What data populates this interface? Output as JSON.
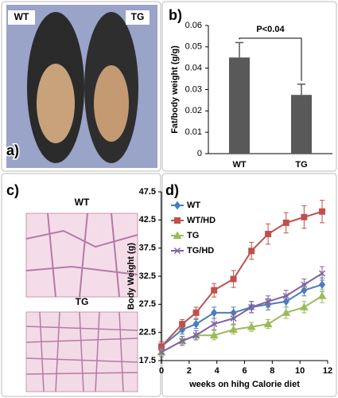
{
  "figure": {
    "panel_labels": [
      "a)",
      "b)",
      "c)",
      "d)"
    ],
    "photo_labels": [
      "WT",
      "TG"
    ],
    "histology_labels": [
      "WT",
      "TG"
    ]
  },
  "chart_data": [
    {
      "type": "bar",
      "ylabel": "Fat/body weight (g/g)",
      "annotation": "P<0.04",
      "categories": [
        "WT",
        "TG"
      ],
      "values": [
        0.045,
        0.0275
      ],
      "errors": [
        0.007,
        0.005
      ],
      "color": "#595959",
      "ylim": [
        0,
        0.06
      ],
      "yticks": [
        0,
        0.01,
        0.02,
        0.03,
        0.04,
        0.05,
        0.06
      ]
    },
    {
      "type": "line",
      "xlabel": "weeks on hihg Calorie diet",
      "ylabel": "Body Weight (g)",
      "x": [
        0,
        1.5,
        2.5,
        3.8,
        5.2,
        6.5,
        7.7,
        9,
        10.3,
        11.6
      ],
      "series": [
        {
          "name": "WT",
          "color": "#4a7ebb",
          "marker": "diamond",
          "values": [
            20,
            23,
            24,
            26,
            26,
            27,
            27.5,
            28,
            30,
            31
          ],
          "errors": [
            0.8,
            0.8,
            0.8,
            1,
            1,
            1,
            1,
            1,
            1,
            1.2
          ]
        },
        {
          "name": "WT/HD",
          "color": "#c0504d",
          "marker": "square",
          "values": [
            20,
            24,
            26,
            30,
            32,
            37,
            40,
            42,
            43,
            44
          ],
          "errors": [
            0.8,
            0.8,
            1,
            1.2,
            1.5,
            1.5,
            1.8,
            1.8,
            2,
            2
          ]
        },
        {
          "name": "TG",
          "color": "#9bbb59",
          "marker": "triangle",
          "values": [
            19,
            21,
            22,
            22,
            23,
            23.5,
            24,
            26,
            27,
            29
          ],
          "errors": [
            0.8,
            0.8,
            0.8,
            0.8,
            0.8,
            0.8,
            0.8,
            1,
            1,
            1.2
          ]
        },
        {
          "name": "TG/HD",
          "color": "#8064a2",
          "marker": "x",
          "values": [
            19,
            21,
            22,
            24,
            25,
            27,
            28,
            29,
            31,
            33
          ],
          "errors": [
            0.8,
            0.8,
            0.8,
            1,
            1,
            1,
            1,
            1,
            1,
            1.2
          ]
        }
      ],
      "xlim": [
        0,
        12
      ],
      "ylim": [
        17.5,
        47.5
      ],
      "xticks": [
        0,
        2,
        4,
        6,
        8,
        10,
        12
      ],
      "yticks": [
        17.5,
        22.5,
        27.5,
        32.5,
        37.5,
        42.5,
        47.5
      ],
      "legend": "upper left"
    }
  ]
}
